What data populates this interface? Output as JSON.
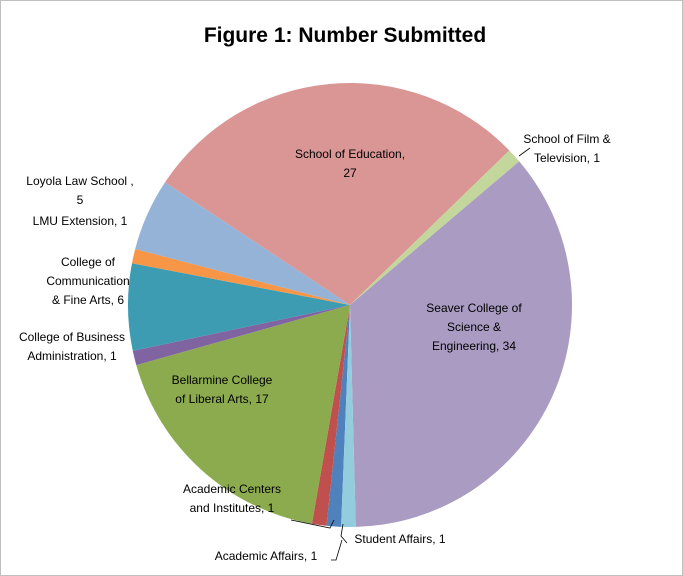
{
  "chart_data": {
    "type": "pie",
    "title": "Figure 1: Number Submitted",
    "labels": [
      "Academic Affairs, 1",
      "Academic Centers and Institutes, 1",
      "Bellarmine College of Liberal Arts, 17",
      "College of Business Administration, 1",
      "College of Communication & Fine Arts, 6",
      "LMU Extension, 1",
      "Loyola Law School , 5",
      "School of Education, 27",
      "School of Film & Television, 1",
      "Seaver College of Science & Engineering, 34",
      "Student Affairs, 1"
    ],
    "values": [
      1,
      1,
      17,
      1,
      6,
      1,
      5,
      27,
      1,
      34,
      1
    ],
    "colors": [
      "#4f81bd",
      "#c0504d",
      "#8bab4e",
      "#8064a2",
      "#3e9cb2",
      "#f79646",
      "#95b3d7",
      "#d99694",
      "#c3d69b",
      "#a99bc1",
      "#93cddd"
    ]
  }
}
